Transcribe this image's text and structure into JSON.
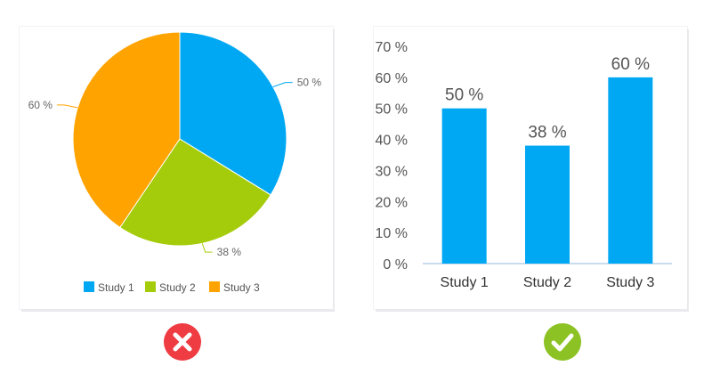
{
  "chart_data": [
    {
      "type": "pie",
      "categories": [
        "Study 1",
        "Study 2",
        "Study 3"
      ],
      "values": [
        50,
        38,
        60
      ],
      "data_labels": [
        "50 %",
        "38 %",
        "60 %"
      ],
      "colors": [
        "#00a8f3",
        "#a5cc0a",
        "#ffa300"
      ],
      "legend": {
        "position": "bottom",
        "entries": [
          "Study 1",
          "Study 2",
          "Study 3"
        ]
      }
    },
    {
      "type": "bar",
      "categories": [
        "Study 1",
        "Study 2",
        "Study 3"
      ],
      "values": [
        50,
        38,
        60
      ],
      "data_labels": [
        "50 %",
        "38 %",
        "60 %"
      ],
      "ylim": [
        0,
        70
      ],
      "yticks": [
        0,
        10,
        20,
        30,
        40,
        50,
        60,
        70
      ],
      "ytick_labels": [
        "0 %",
        "10 %",
        "20 %",
        "30 %",
        "40 %",
        "50 %",
        "60 %",
        "70 %"
      ],
      "color": "#00a8f3",
      "grid": false
    }
  ],
  "verdicts": {
    "left": {
      "icon": "cross-circle-icon",
      "color": "#ef3b42"
    },
    "right": {
      "icon": "check-circle-icon",
      "color": "#8cc224"
    }
  }
}
